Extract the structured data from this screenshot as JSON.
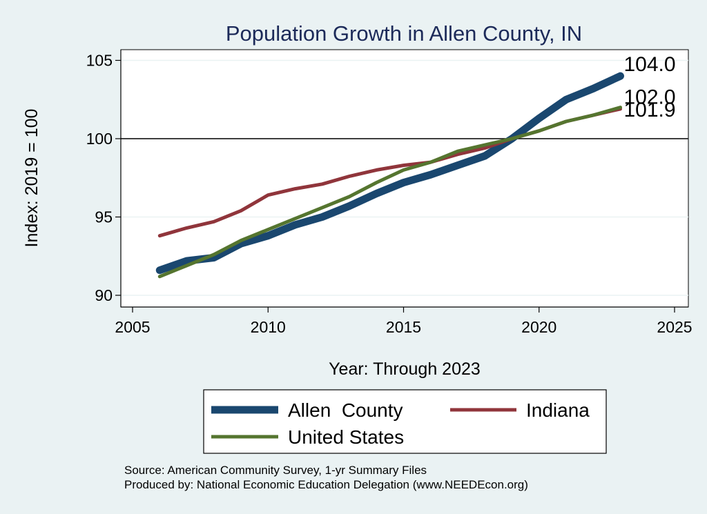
{
  "chart_data": {
    "type": "line",
    "title": "Population Growth in Allen County, IN",
    "xlabel": "Year: Through 2023",
    "ylabel": "Index: 2019 = 100",
    "xlim": [
      2005,
      2025
    ],
    "ylim": [
      90,
      105
    ],
    "xticks": [
      2005,
      2010,
      2015,
      2020,
      2025
    ],
    "yticks": [
      90,
      95,
      100,
      105
    ],
    "reference_line": 100,
    "grid": true,
    "legend_position": "bottom",
    "x": [
      2006,
      2007,
      2008,
      2009,
      2010,
      2011,
      2012,
      2013,
      2014,
      2015,
      2016,
      2017,
      2018,
      2019,
      2020,
      2021,
      2022,
      2023
    ],
    "series": [
      {
        "name": "Allen  County",
        "color": "#1a476f",
        "end_label": "104.0",
        "values": [
          91.6,
          92.2,
          92.4,
          93.3,
          93.8,
          94.5,
          95.0,
          95.7,
          96.5,
          97.2,
          97.7,
          98.3,
          98.9,
          100.0,
          101.3,
          102.5,
          103.2,
          104.0
        ]
      },
      {
        "name": "Indiana",
        "color": "#90353b",
        "end_label": "101.9",
        "values": [
          93.8,
          94.3,
          94.7,
          95.4,
          96.4,
          96.8,
          97.1,
          97.6,
          98.0,
          98.3,
          98.5,
          99.0,
          99.4,
          100.0,
          100.5,
          101.1,
          101.5,
          101.9
        ]
      },
      {
        "name": "United States",
        "color": "#55752f",
        "end_label": "102.0",
        "values": [
          91.2,
          91.9,
          92.6,
          93.5,
          94.2,
          94.9,
          95.6,
          96.3,
          97.2,
          98.0,
          98.5,
          99.2,
          99.6,
          100.0,
          100.5,
          101.1,
          101.5,
          102.0
        ]
      }
    ]
  },
  "notes": {
    "source": "Source: American Community Survey, 1-yr Summary Files",
    "produced": "Produced by: National Economic Education Delegation (www.NEEDEcon.org)"
  }
}
